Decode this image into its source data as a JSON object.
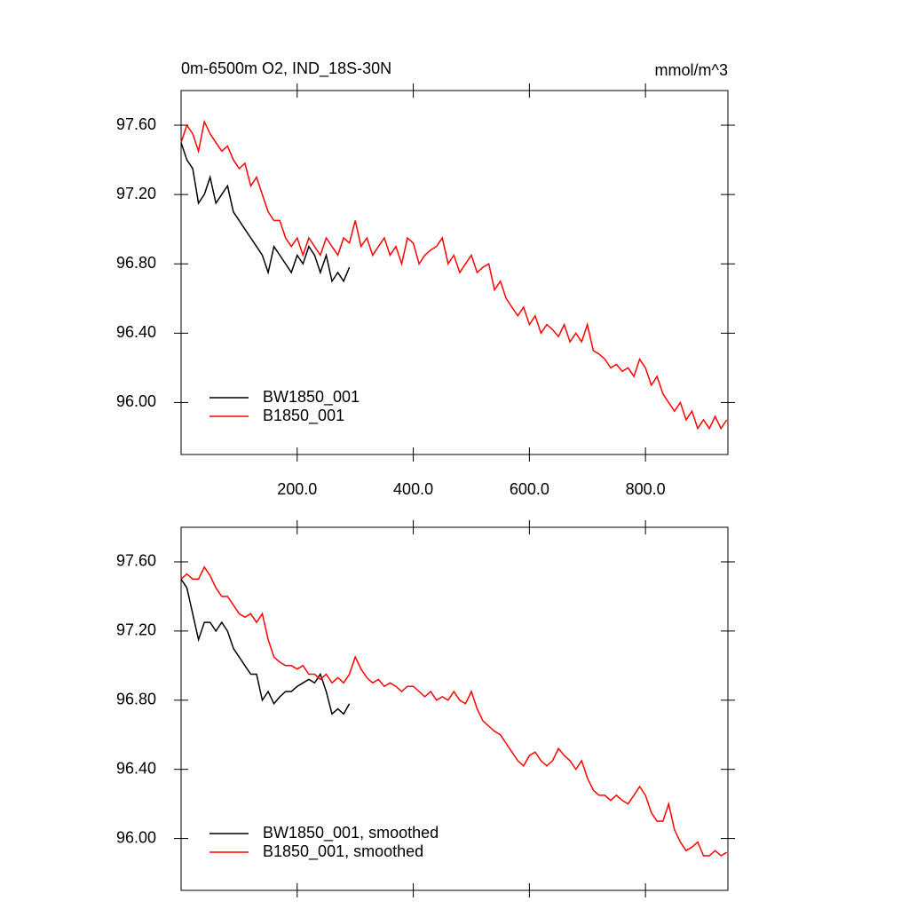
{
  "chart_data": [
    {
      "type": "line",
      "title": "0m-6500m O2, IND_18S-30N",
      "units": "mmol/m^3",
      "xlim": [
        0,
        942
      ],
      "ylim": [
        95.7,
        97.8
      ],
      "xticks": [
        {
          "value": 200,
          "label": "200.0"
        },
        {
          "value": 400,
          "label": "400.0"
        },
        {
          "value": 600,
          "label": "600.0"
        },
        {
          "value": 800,
          "label": "800.0"
        }
      ],
      "yticks": [
        {
          "value": 96.0,
          "label": "96.00"
        },
        {
          "value": 96.4,
          "label": "96.40"
        },
        {
          "value": 96.8,
          "label": "96.80"
        },
        {
          "value": 97.2,
          "label": "97.20"
        },
        {
          "value": 97.6,
          "label": "97.60"
        }
      ],
      "legend": "lower left",
      "series": [
        {
          "name": "BW1850_001",
          "color": "#000000",
          "x": [
            0,
            10,
            20,
            30,
            40,
            50,
            60,
            70,
            80,
            90,
            100,
            110,
            120,
            130,
            140,
            150,
            160,
            170,
            180,
            190,
            200,
            210,
            220,
            230,
            240,
            250,
            260,
            270,
            280,
            290
          ],
          "values": [
            97.5,
            97.4,
            97.35,
            97.15,
            97.2,
            97.3,
            97.15,
            97.2,
            97.25,
            97.1,
            97.05,
            97.0,
            96.95,
            96.9,
            96.85,
            96.75,
            96.9,
            96.85,
            96.8,
            96.75,
            96.85,
            96.8,
            96.9,
            96.85,
            96.75,
            96.85,
            96.7,
            96.75,
            96.7,
            96.78
          ]
        },
        {
          "name": "B1850_001",
          "color": "#ff0000",
          "x": [
            0,
            10,
            20,
            30,
            40,
            50,
            60,
            70,
            80,
            90,
            100,
            110,
            120,
            130,
            140,
            150,
            160,
            170,
            180,
            190,
            200,
            210,
            220,
            230,
            240,
            250,
            260,
            270,
            280,
            290,
            300,
            310,
            320,
            330,
            340,
            350,
            360,
            370,
            380,
            390,
            400,
            410,
            420,
            430,
            440,
            450,
            460,
            470,
            480,
            490,
            500,
            510,
            520,
            530,
            540,
            550,
            560,
            570,
            580,
            590,
            600,
            610,
            620,
            630,
            640,
            650,
            660,
            670,
            680,
            690,
            700,
            710,
            720,
            730,
            740,
            750,
            760,
            770,
            780,
            790,
            800,
            810,
            820,
            830,
            840,
            850,
            860,
            870,
            880,
            890,
            900,
            910,
            920,
            930,
            940
          ],
          "values": [
            97.5,
            97.6,
            97.55,
            97.45,
            97.62,
            97.55,
            97.5,
            97.45,
            97.48,
            97.4,
            97.35,
            97.38,
            97.25,
            97.3,
            97.2,
            97.1,
            97.05,
            97.05,
            96.95,
            96.9,
            96.95,
            96.85,
            96.95,
            96.9,
            96.85,
            96.95,
            96.9,
            96.85,
            96.95,
            96.92,
            97.05,
            96.9,
            96.95,
            96.85,
            96.9,
            96.95,
            96.85,
            96.9,
            96.8,
            96.95,
            96.92,
            96.8,
            96.85,
            96.88,
            96.9,
            96.95,
            96.8,
            96.85,
            96.75,
            96.8,
            96.85,
            96.75,
            96.78,
            96.8,
            96.65,
            96.7,
            96.6,
            96.55,
            96.5,
            96.55,
            96.45,
            96.5,
            96.4,
            96.45,
            96.42,
            96.38,
            96.45,
            96.35,
            96.4,
            96.35,
            96.45,
            96.3,
            96.28,
            96.25,
            96.2,
            96.22,
            96.18,
            96.2,
            96.15,
            96.25,
            96.2,
            96.1,
            96.15,
            96.05,
            96.0,
            95.95,
            96.0,
            95.9,
            95.95,
            95.85,
            95.9,
            95.85,
            95.92,
            95.85,
            95.9
          ]
        }
      ]
    },
    {
      "type": "line",
      "xlim": [
        0,
        942
      ],
      "ylim": [
        95.7,
        97.8
      ],
      "xticks": [
        200,
        400,
        600,
        800
      ],
      "show_xtick_labels": false,
      "yticks": [
        {
          "value": 96.0,
          "label": "96.00"
        },
        {
          "value": 96.4,
          "label": "96.40"
        },
        {
          "value": 96.8,
          "label": "96.80"
        },
        {
          "value": 97.2,
          "label": "97.20"
        },
        {
          "value": 97.6,
          "label": "97.60"
        }
      ],
      "legend": "lower left",
      "series": [
        {
          "name": "BW1850_001, smoothed",
          "color": "#000000",
          "x": [
            0,
            10,
            20,
            30,
            40,
            50,
            60,
            70,
            80,
            90,
            100,
            110,
            120,
            130,
            140,
            150,
            160,
            170,
            180,
            190,
            200,
            210,
            220,
            230,
            240,
            250,
            260,
            270,
            280,
            290
          ],
          "values": [
            97.5,
            97.45,
            97.3,
            97.15,
            97.25,
            97.25,
            97.2,
            97.25,
            97.2,
            97.1,
            97.05,
            97.0,
            96.95,
            96.95,
            96.8,
            96.85,
            96.78,
            96.82,
            96.85,
            96.85,
            96.88,
            96.9,
            96.92,
            96.9,
            96.95,
            96.85,
            96.72,
            96.75,
            96.72,
            96.78
          ]
        },
        {
          "name": "B1850_001, smoothed",
          "color": "#ff0000",
          "x": [
            0,
            10,
            20,
            30,
            40,
            50,
            60,
            70,
            80,
            90,
            100,
            110,
            120,
            130,
            140,
            150,
            160,
            170,
            180,
            190,
            200,
            210,
            220,
            230,
            240,
            250,
            260,
            270,
            280,
            290,
            300,
            310,
            320,
            330,
            340,
            350,
            360,
            370,
            380,
            390,
            400,
            410,
            420,
            430,
            440,
            450,
            460,
            470,
            480,
            490,
            500,
            510,
            520,
            530,
            540,
            550,
            560,
            570,
            580,
            590,
            600,
            610,
            620,
            630,
            640,
            650,
            660,
            670,
            680,
            690,
            700,
            710,
            720,
            730,
            740,
            750,
            760,
            770,
            780,
            790,
            800,
            810,
            820,
            830,
            840,
            850,
            860,
            870,
            880,
            890,
            900,
            910,
            920,
            930,
            940
          ],
          "values": [
            97.5,
            97.53,
            97.5,
            97.5,
            97.57,
            97.52,
            97.45,
            97.4,
            97.4,
            97.35,
            97.3,
            97.28,
            97.3,
            97.25,
            97.3,
            97.15,
            97.05,
            97.02,
            97.0,
            97.0,
            96.98,
            97.0,
            96.95,
            96.95,
            96.92,
            96.95,
            96.9,
            96.93,
            96.9,
            96.95,
            97.05,
            96.98,
            96.93,
            96.9,
            96.92,
            96.88,
            96.9,
            96.88,
            96.85,
            96.88,
            96.88,
            96.85,
            96.82,
            96.85,
            96.8,
            96.82,
            96.8,
            96.85,
            96.8,
            96.78,
            96.85,
            96.75,
            96.68,
            96.65,
            96.62,
            96.6,
            96.55,
            96.5,
            96.45,
            96.42,
            96.48,
            96.5,
            96.45,
            96.42,
            96.45,
            96.52,
            96.48,
            96.45,
            96.4,
            96.45,
            96.35,
            96.28,
            96.25,
            96.25,
            96.22,
            96.25,
            96.22,
            96.2,
            96.25,
            96.3,
            96.25,
            96.15,
            96.1,
            96.1,
            96.2,
            96.05,
            95.98,
            95.93,
            95.95,
            95.98,
            95.9,
            95.9,
            95.93,
            95.9,
            95.92
          ]
        }
      ]
    }
  ]
}
